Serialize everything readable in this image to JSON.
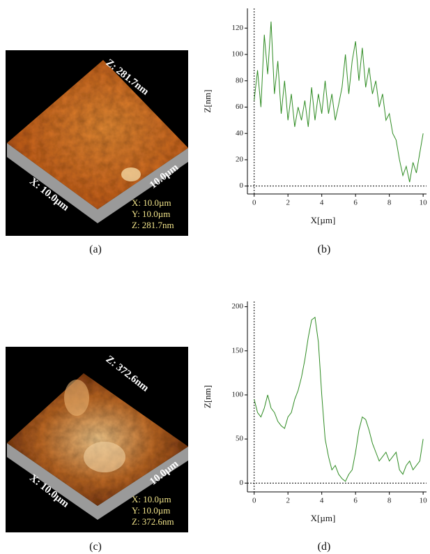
{
  "images": [
    {
      "z_axis": "Z: 281.7nm",
      "x_axis": "X: 10.0µm",
      "y_axis": "10.0µm",
      "info": [
        "X: 10.0µm",
        "Y: 10.0µm",
        "Z: 281.7nm"
      ]
    },
    {
      "z_axis": "Z: 372.6nm",
      "x_axis": "X: 10.0µm",
      "y_axis": "10.0µm",
      "info": [
        "X: 10.0µm",
        "Y: 10.0µm",
        "Z: 372.6nm"
      ]
    }
  ],
  "captions": [
    "(a)",
    "(b)",
    "(c)",
    "(d)"
  ],
  "chart_data": [
    {
      "type": "line",
      "xlabel": "X[µm]",
      "ylabel": "Z[nm]",
      "x": [
        0,
        0.2,
        0.4,
        0.6,
        0.8,
        1,
        1.2,
        1.4,
        1.6,
        1.8,
        2,
        2.2,
        2.4,
        2.6,
        2.8,
        3,
        3.2,
        3.4,
        3.6,
        3.8,
        4,
        4.2,
        4.4,
        4.6,
        4.8,
        5,
        5.2,
        5.4,
        5.6,
        5.8,
        6,
        6.2,
        6.4,
        6.6,
        6.8,
        7,
        7.2,
        7.4,
        7.6,
        7.8,
        8,
        8.2,
        8.4,
        8.6,
        8.8,
        9,
        9.2,
        9.4,
        9.6,
        9.8,
        10
      ],
      "series": [
        {
          "color": "#2e8b22",
          "values": [
            65,
            88,
            60,
            115,
            85,
            125,
            70,
            95,
            55,
            80,
            50,
            70,
            45,
            60,
            50,
            65,
            45,
            75,
            50,
            70,
            55,
            80,
            55,
            70,
            50,
            62,
            75,
            100,
            70,
            95,
            110,
            80,
            105,
            75,
            90,
            70,
            80,
            60,
            70,
            50,
            55,
            40,
            35,
            20,
            8,
            15,
            3,
            18,
            10,
            25,
            40
          ]
        }
      ],
      "xlim": [
        -0.4,
        10.2
      ],
      "ylim": [
        -6,
        135
      ],
      "xticks": [
        0,
        2,
        4,
        6,
        8,
        10
      ],
      "yticks": [
        0,
        20,
        40,
        60,
        80,
        100,
        120
      ]
    },
    {
      "type": "line",
      "xlabel": "X[µm]",
      "ylabel": "Z[nm]",
      "x": [
        0,
        0.2,
        0.4,
        0.6,
        0.8,
        1,
        1.2,
        1.4,
        1.6,
        1.8,
        2,
        2.2,
        2.4,
        2.6,
        2.8,
        3,
        3.2,
        3.4,
        3.6,
        3.8,
        4,
        4.2,
        4.4,
        4.6,
        4.8,
        5,
        5.2,
        5.4,
        5.6,
        5.8,
        6,
        6.2,
        6.4,
        6.6,
        6.8,
        7,
        7.2,
        7.4,
        7.6,
        7.8,
        8,
        8.2,
        8.4,
        8.6,
        8.8,
        9,
        9.2,
        9.4,
        9.6,
        9.8,
        10
      ],
      "series": [
        {
          "color": "#2e8b22",
          "values": [
            95,
            80,
            75,
            85,
            100,
            85,
            80,
            70,
            65,
            62,
            75,
            80,
            95,
            105,
            120,
            140,
            165,
            185,
            188,
            160,
            100,
            50,
            30,
            15,
            20,
            10,
            5,
            2,
            10,
            15,
            35,
            60,
            75,
            72,
            60,
            45,
            35,
            25,
            30,
            35,
            25,
            30,
            35,
            15,
            10,
            20,
            25,
            15,
            20,
            25,
            50
          ]
        }
      ],
      "xlim": [
        -0.4,
        10.2
      ],
      "ylim": [
        -10,
        206
      ],
      "xticks": [
        0,
        2,
        4,
        6,
        8,
        10
      ],
      "yticks": [
        0,
        50,
        100,
        150,
        200
      ]
    }
  ]
}
